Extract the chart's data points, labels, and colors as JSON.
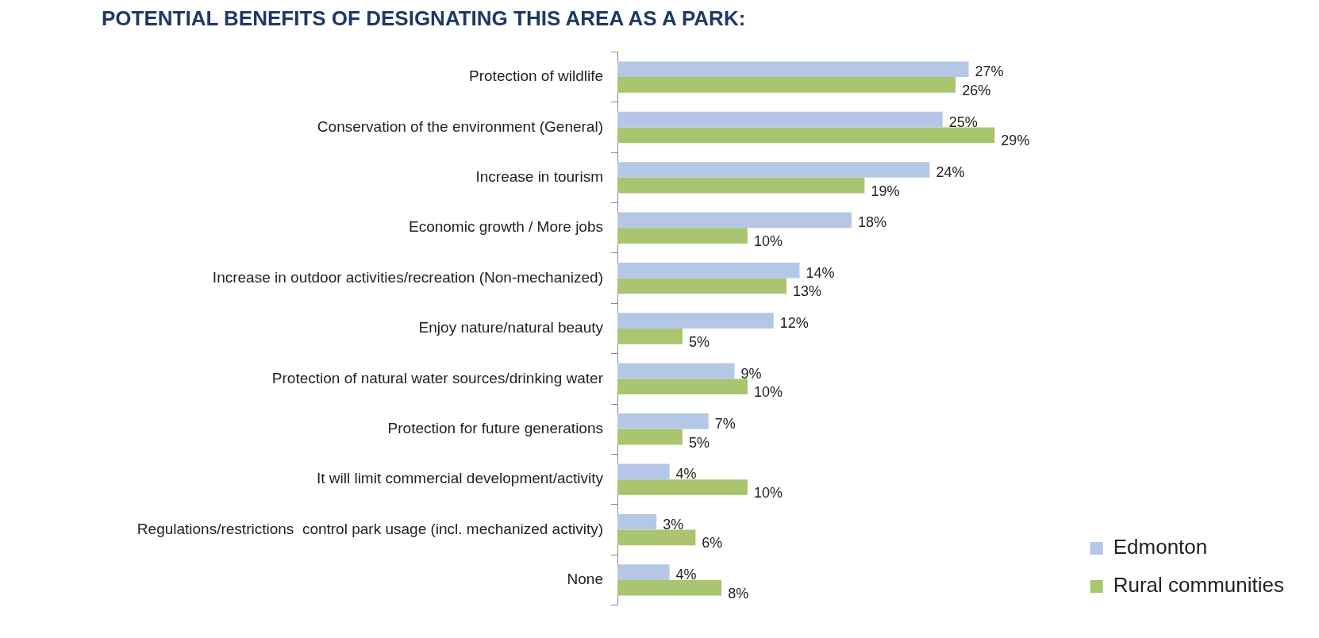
{
  "chart_data": {
    "type": "bar",
    "orientation": "horizontal",
    "title": "POTENTIAL BENEFITS OF DESIGNATING THIS AREA AS A PARK:",
    "categories": [
      "Protection of wildlife",
      "Conservation of the environment (General)",
      "Increase in tourism",
      "Economic growth / More jobs",
      "Increase in outdoor activities/recreation (Non-mechanized)",
      "Enjoy nature/natural beauty",
      "Protection of natural water sources/drinking water",
      "Protection for future generations",
      "It will limit commercial development/activity",
      "Regulations/restrictions  control park usage (incl. mechanized activity)",
      "None"
    ],
    "series": [
      {
        "name": "Edmonton",
        "color": "#b4c7e7",
        "values": [
          27,
          25,
          24,
          18,
          14,
          12,
          9,
          7,
          4,
          3,
          4
        ],
        "value_labels": [
          "27%",
          "25%",
          "24%",
          "18%",
          "14%",
          "12%",
          "9%",
          "7%",
          "4%",
          "3%",
          "4%"
        ]
      },
      {
        "name": "Rural communities",
        "color": "#a9c56f",
        "values": [
          26,
          29,
          19,
          10,
          13,
          5,
          10,
          5,
          10,
          6,
          8
        ],
        "value_labels": [
          "26%",
          "29%",
          "19%",
          "10%",
          "13%",
          "5%",
          "10%",
          "5%",
          "10%",
          "6%",
          "8%"
        ]
      }
    ],
    "legend": "bottom right",
    "grid": false
  }
}
